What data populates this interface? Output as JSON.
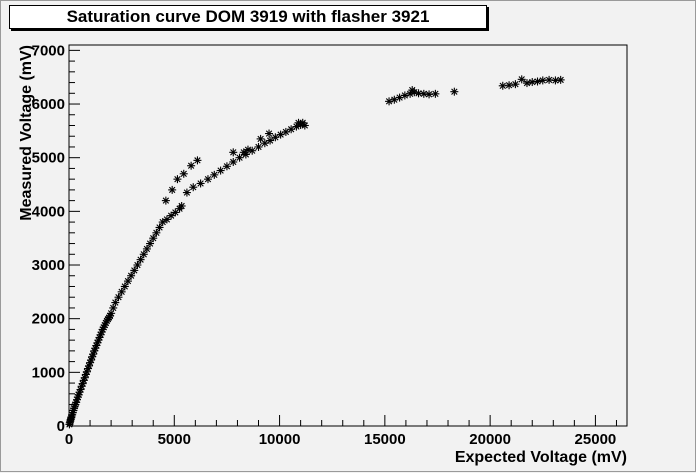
{
  "chart_data": {
    "type": "scatter",
    "title": "Saturation curve DOM 3919 with flasher 3921",
    "xlabel": "Expected Voltage (mV)",
    "ylabel": "Measured Voltage (mV)",
    "xlim": [
      0,
      26500
    ],
    "ylim": [
      0,
      7100
    ],
    "xticks": [
      0,
      5000,
      10000,
      15000,
      20000,
      25000
    ],
    "yticks": [
      0,
      1000,
      2000,
      3000,
      4000,
      5000,
      6000,
      7000
    ],
    "marker": "star",
    "grid": false,
    "points": [
      [
        20,
        30
      ],
      [
        40,
        60
      ],
      [
        60,
        90
      ],
      [
        80,
        120
      ],
      [
        100,
        150
      ],
      [
        120,
        170
      ],
      [
        150,
        210
      ],
      [
        180,
        250
      ],
      [
        210,
        290
      ],
      [
        240,
        330
      ],
      [
        270,
        370
      ],
      [
        300,
        400
      ],
      [
        340,
        440
      ],
      [
        380,
        490
      ],
      [
        420,
        540
      ],
      [
        460,
        580
      ],
      [
        500,
        630
      ],
      [
        550,
        680
      ],
      [
        600,
        740
      ],
      [
        650,
        790
      ],
      [
        700,
        850
      ],
      [
        750,
        900
      ],
      [
        800,
        960
      ],
      [
        850,
        1010
      ],
      [
        900,
        1070
      ],
      [
        950,
        1120
      ],
      [
        1000,
        1180
      ],
      [
        1050,
        1230
      ],
      [
        1100,
        1290
      ],
      [
        1150,
        1340
      ],
      [
        1200,
        1400
      ],
      [
        1250,
        1450
      ],
      [
        1300,
        1500
      ],
      [
        1350,
        1550
      ],
      [
        1400,
        1600
      ],
      [
        1450,
        1650
      ],
      [
        1500,
        1700
      ],
      [
        1550,
        1750
      ],
      [
        1600,
        1800
      ],
      [
        1650,
        1840
      ],
      [
        1700,
        1880
      ],
      [
        1750,
        1920
      ],
      [
        1800,
        1960
      ],
      [
        1850,
        1990
      ],
      [
        1900,
        2020
      ],
      [
        1950,
        2050
      ],
      [
        2000,
        2100
      ],
      [
        2100,
        2200
      ],
      [
        2200,
        2300
      ],
      [
        2350,
        2400
      ],
      [
        2500,
        2500
      ],
      [
        2650,
        2600
      ],
      [
        2800,
        2700
      ],
      [
        2950,
        2800
      ],
      [
        3100,
        2900
      ],
      [
        3250,
        3000
      ],
      [
        3400,
        3100
      ],
      [
        3550,
        3200
      ],
      [
        3700,
        3300
      ],
      [
        3850,
        3400
      ],
      [
        4000,
        3500
      ],
      [
        4150,
        3600
      ],
      [
        4300,
        3700
      ],
      [
        4450,
        3800
      ],
      [
        4650,
        3850
      ],
      [
        4850,
        3920
      ],
      [
        5050,
        3980
      ],
      [
        5250,
        4050
      ],
      [
        5350,
        4100
      ],
      [
        4600,
        4200
      ],
      [
        4900,
        4400
      ],
      [
        5150,
        4600
      ],
      [
        5450,
        4700
      ],
      [
        5800,
        4850
      ],
      [
        6100,
        4950
      ],
      [
        5600,
        4350
      ],
      [
        5900,
        4450
      ],
      [
        6250,
        4520
      ],
      [
        6600,
        4600
      ],
      [
        6900,
        4680
      ],
      [
        7200,
        4760
      ],
      [
        7500,
        4840
      ],
      [
        7800,
        4920
      ],
      [
        8100,
        5000
      ],
      [
        8400,
        5060
      ],
      [
        8700,
        5130
      ],
      [
        9000,
        5200
      ],
      [
        9300,
        5270
      ],
      [
        9550,
        5320
      ],
      [
        9800,
        5380
      ],
      [
        10050,
        5430
      ],
      [
        10300,
        5480
      ],
      [
        10550,
        5530
      ],
      [
        10800,
        5580
      ],
      [
        11000,
        5610
      ],
      [
        11200,
        5600
      ],
      [
        10900,
        5650
      ],
      [
        11100,
        5650
      ],
      [
        7800,
        5100
      ],
      [
        8300,
        5100
      ],
      [
        8500,
        5150
      ],
      [
        9100,
        5350
      ],
      [
        9500,
        5450
      ],
      [
        15200,
        6050
      ],
      [
        15450,
        6080
      ],
      [
        15700,
        6120
      ],
      [
        15950,
        6160
      ],
      [
        16200,
        6190
      ],
      [
        16400,
        6220
      ],
      [
        16300,
        6260
      ],
      [
        16600,
        6200
      ],
      [
        16850,
        6190
      ],
      [
        17100,
        6180
      ],
      [
        17400,
        6190
      ],
      [
        18300,
        6230
      ],
      [
        20600,
        6340
      ],
      [
        20900,
        6350
      ],
      [
        21200,
        6370
      ],
      [
        21500,
        6460
      ],
      [
        21750,
        6390
      ],
      [
        22000,
        6410
      ],
      [
        22250,
        6420
      ],
      [
        22500,
        6440
      ],
      [
        22800,
        6450
      ],
      [
        23100,
        6440
      ],
      [
        23350,
        6450
      ]
    ]
  }
}
